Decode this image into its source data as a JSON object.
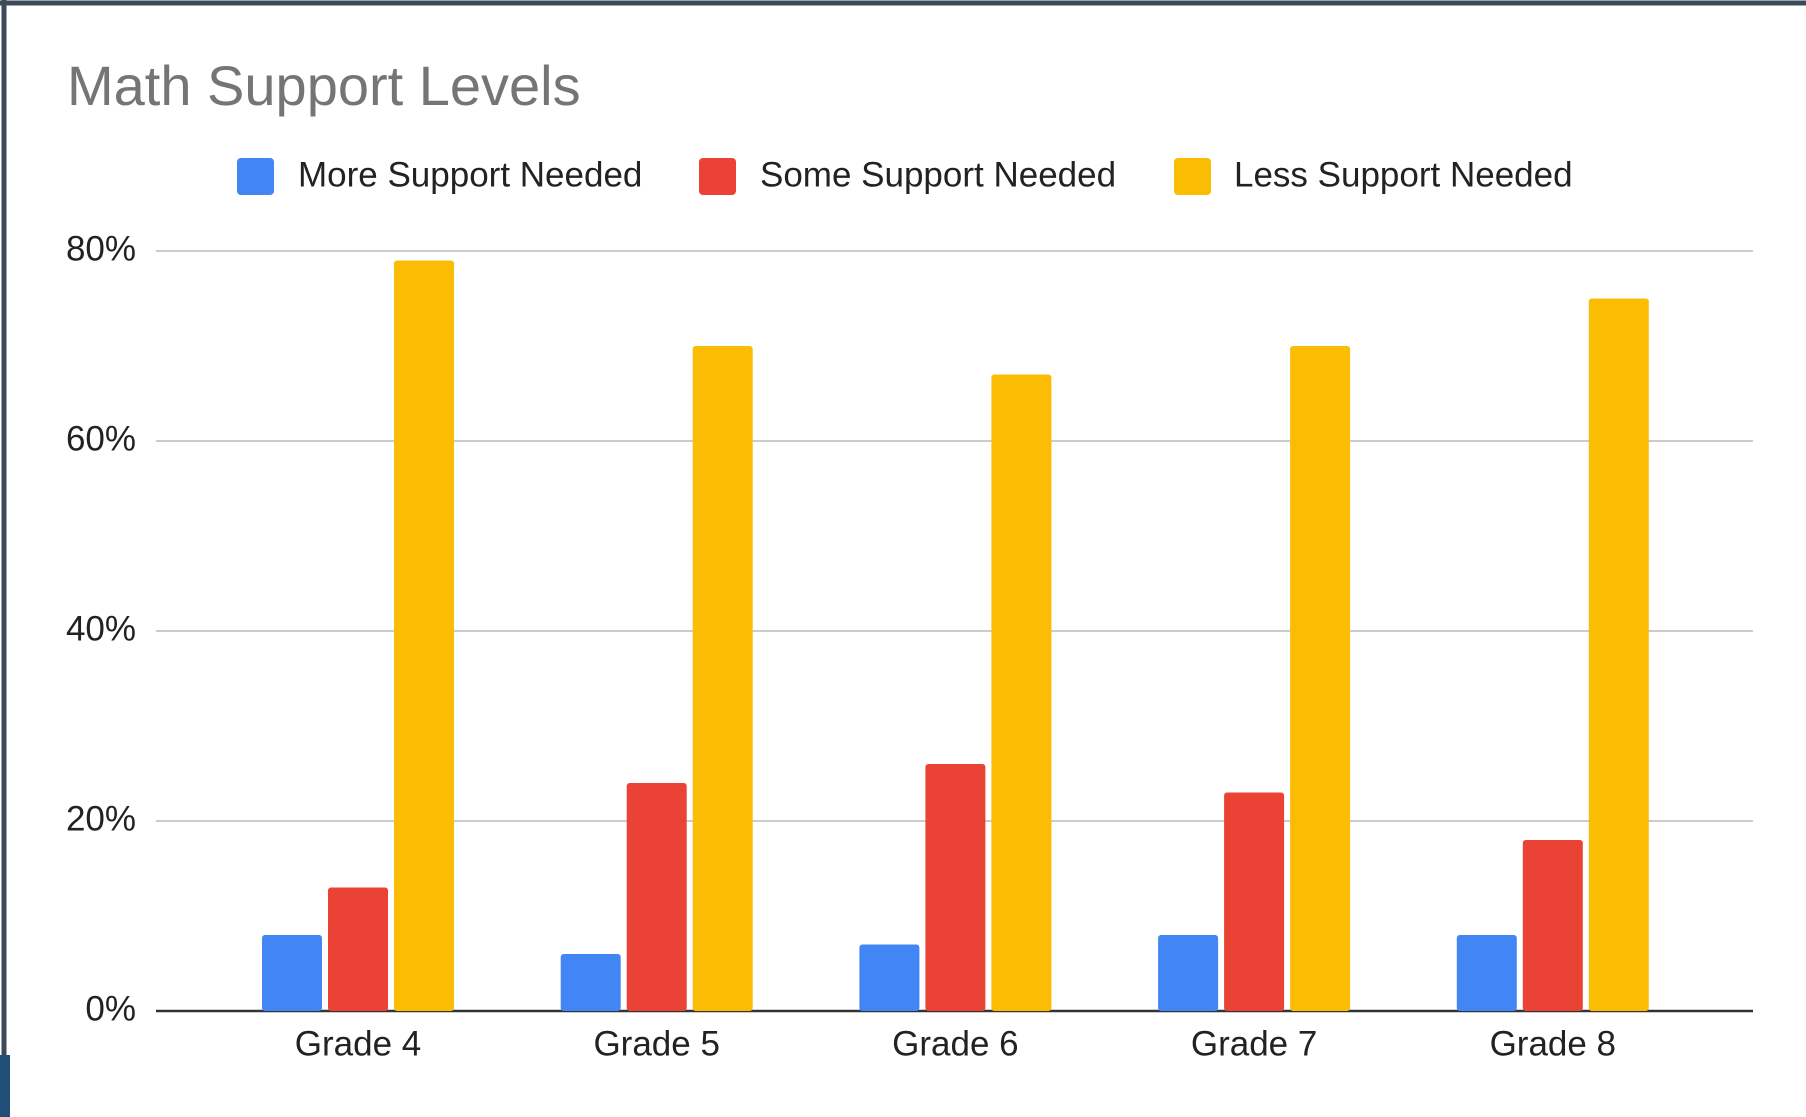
{
  "chart_data": {
    "type": "bar",
    "title": "Math Support Levels",
    "categories": [
      "Grade 4",
      "Grade 5",
      "Grade 6",
      "Grade 7",
      "Grade 8"
    ],
    "series": [
      {
        "name": "More Support Needed",
        "color": "#4285f4",
        "values": [
          8,
          6,
          7,
          8,
          8
        ]
      },
      {
        "name": "Some Support Needed",
        "color": "#ea4335",
        "values": [
          13,
          24,
          26,
          23,
          18
        ]
      },
      {
        "name": "Less Support Needed",
        "color": "#fbbc04",
        "values": [
          79,
          70,
          67,
          70,
          75
        ]
      }
    ],
    "ylim": [
      0,
      80
    ],
    "yticks": [
      {
        "value": 0,
        "label": "0%"
      },
      {
        "value": 20,
        "label": "20%"
      },
      {
        "value": 40,
        "label": "40%"
      },
      {
        "value": 60,
        "label": "60%"
      },
      {
        "value": 80,
        "label": "80%"
      }
    ],
    "grid": true,
    "legend": "top"
  }
}
